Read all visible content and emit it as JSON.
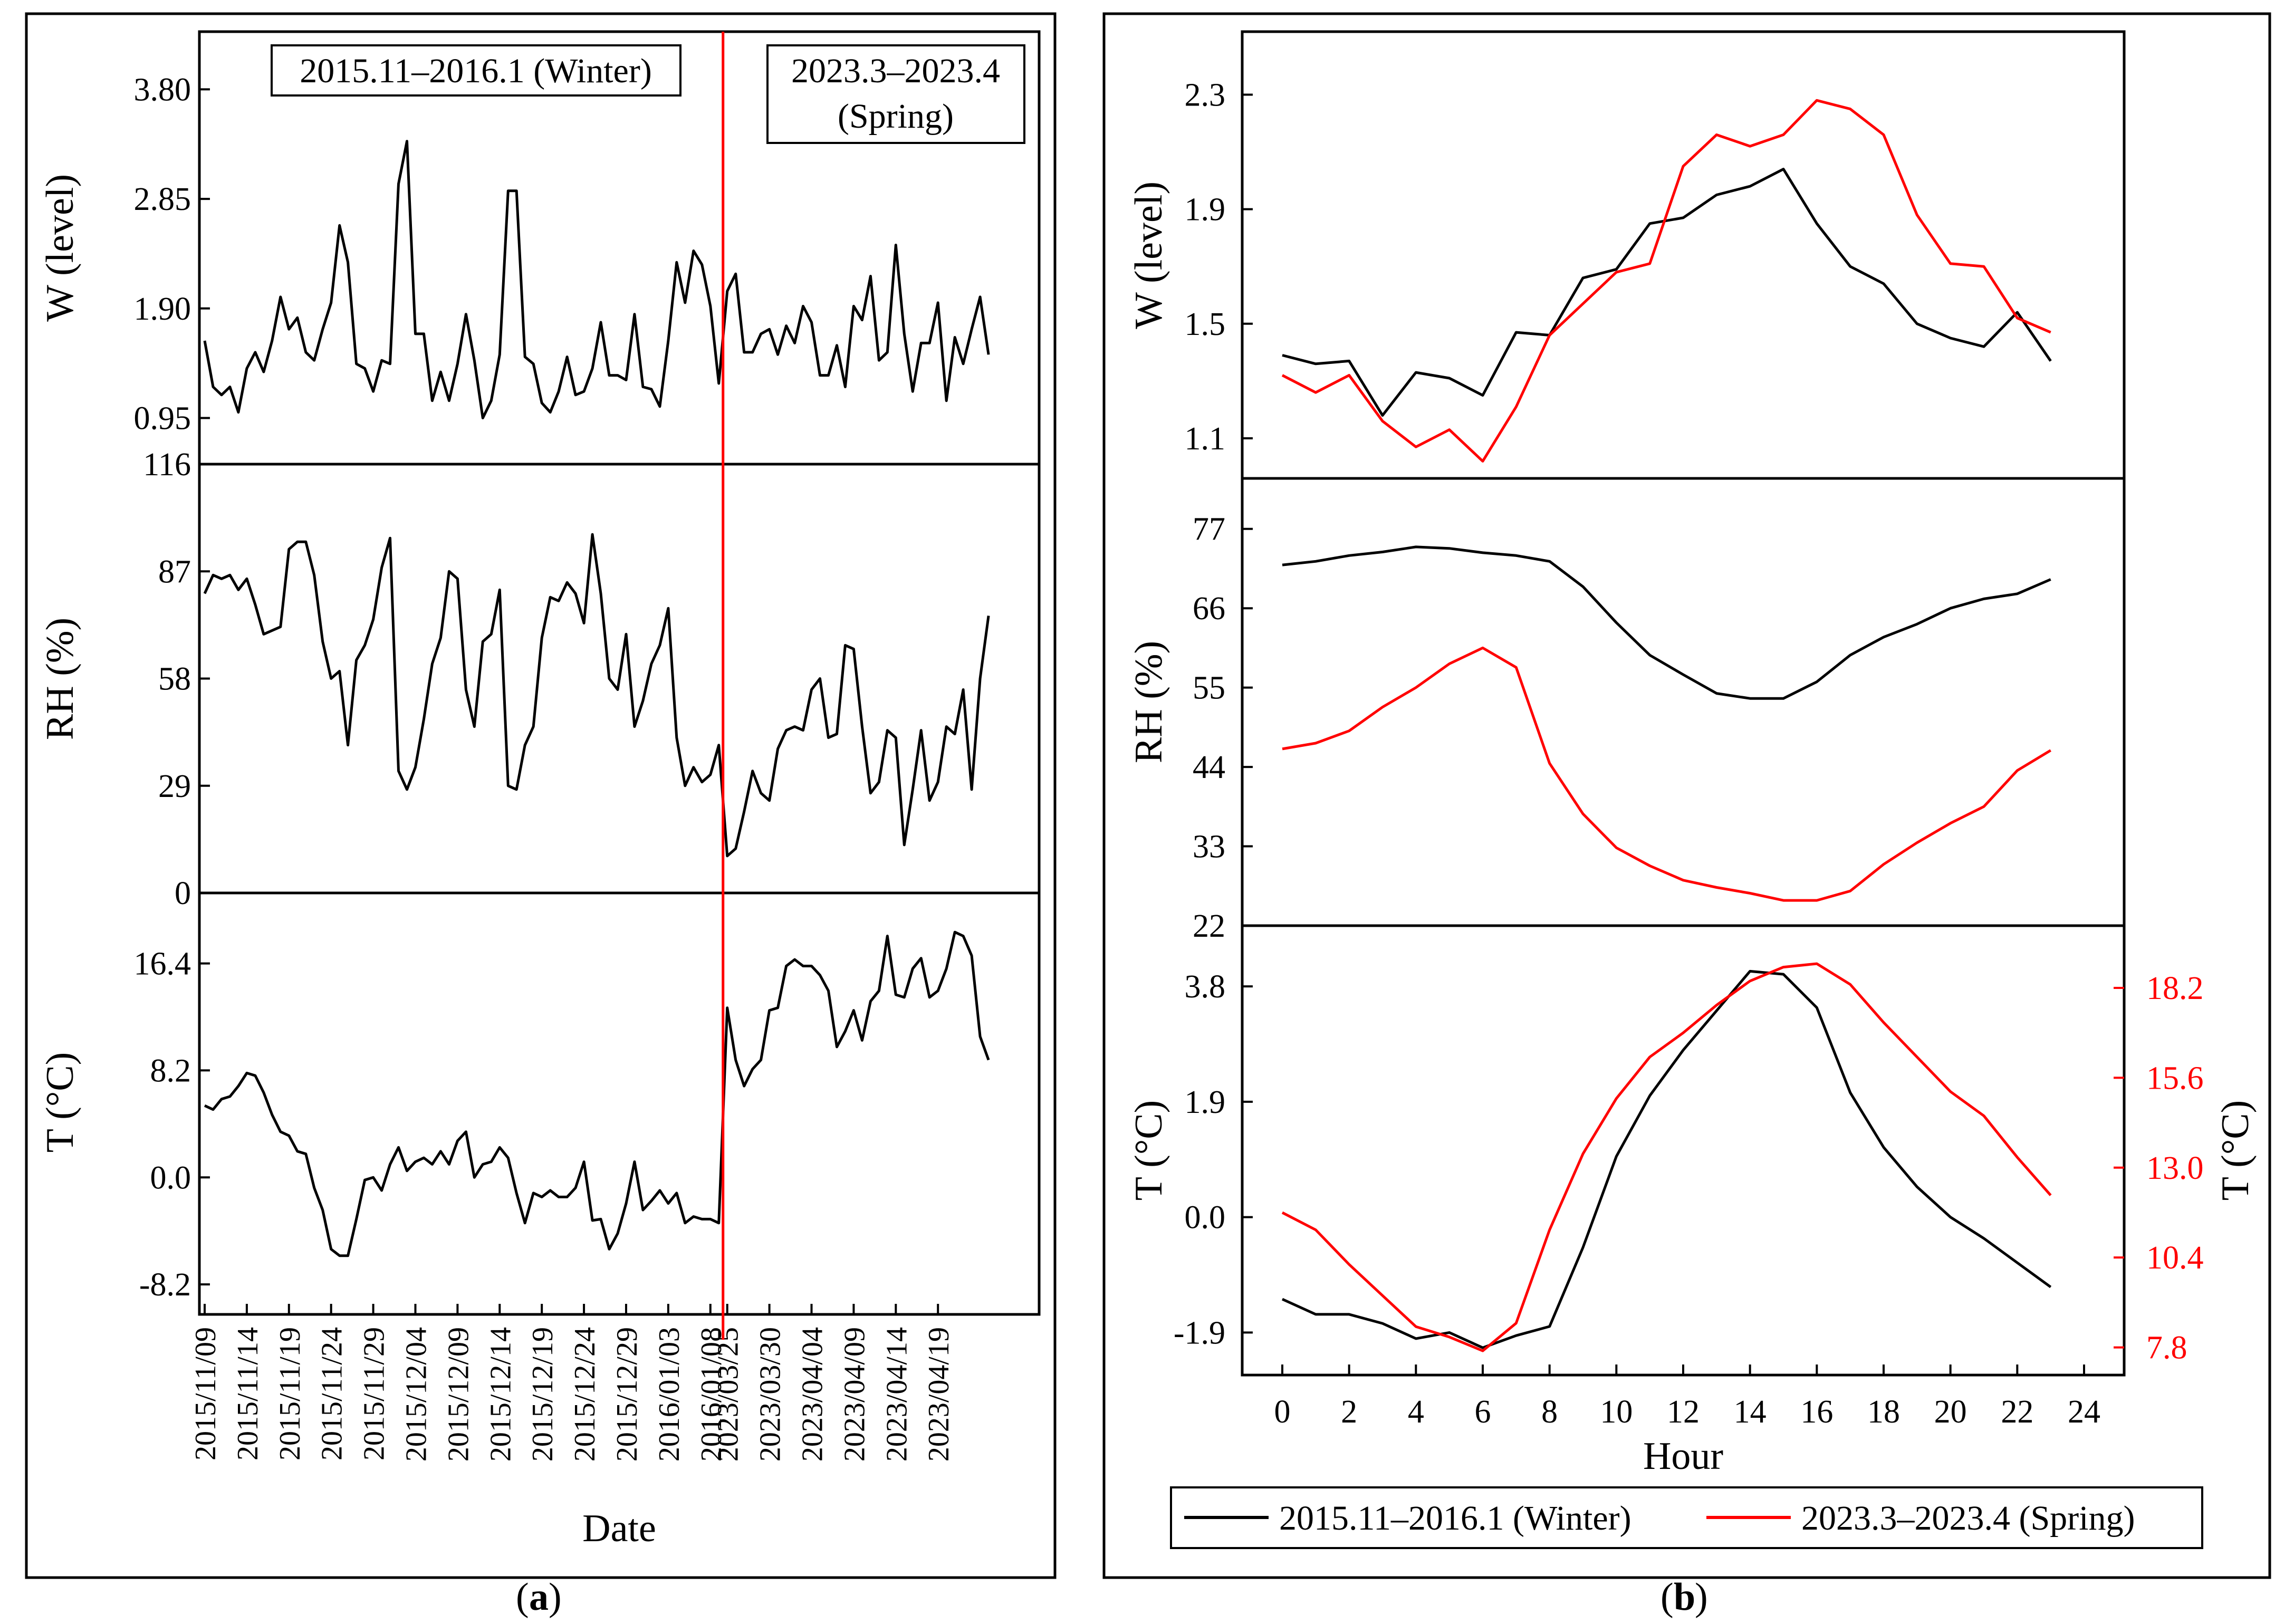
{
  "captions": {
    "a": "a",
    "b": "b"
  },
  "colors": {
    "winter": "#000000",
    "spring": "#ff0000"
  },
  "legend": {
    "winter": "2015.11–2016.1 (Winter)",
    "spring": "2023.3–2023.4 (Spring)"
  },
  "panel_a": {
    "box_winter": "2015.11–2016.1 (Winter)",
    "box_spring_line1": "2023.3–2023.4",
    "box_spring_line2": "(Spring)",
    "xlabel": "Date",
    "date_ticks": [
      "2015/11/09",
      "2015/11/14",
      "2015/11/19",
      "2015/11/24",
      "2015/11/29",
      "2015/12/04",
      "2015/12/09",
      "2015/12/14",
      "2015/12/19",
      "2015/12/24",
      "2015/12/29",
      "2016/01/03",
      "2016/01/08",
      "2023/03/25",
      "2023/03/30",
      "2023/04/04",
      "2023/04/09",
      "2023/04/14",
      "2023/04/19"
    ]
  },
  "chart_data": [
    {
      "id": "a-W",
      "type": "line",
      "title": "",
      "xlabel": "Date",
      "ylabel": "W (level)",
      "ylim": [
        0.55,
        4.3
      ],
      "yticks": [
        "0.95",
        "1.90",
        "2.85",
        "3.80"
      ],
      "x_index_range": [
        0,
        98
      ],
      "divider_after_index": 62,
      "series": [
        {
          "name": "W",
          "values": [
            1.62,
            1.22,
            1.15,
            1.22,
            1.0,
            1.38,
            1.52,
            1.35,
            1.62,
            2.0,
            1.72,
            1.82,
            1.52,
            1.45,
            1.72,
            1.95,
            2.62,
            2.3,
            1.42,
            1.38,
            1.18,
            1.45,
            1.42,
            2.98,
            3.35,
            1.68,
            1.68,
            1.1,
            1.35,
            1.1,
            1.42,
            1.85,
            1.45,
            0.95,
            1.1,
            1.5,
            2.92,
            2.92,
            1.48,
            1.42,
            1.08,
            1.0,
            1.18,
            1.48,
            1.15,
            1.18,
            1.38,
            1.78,
            1.32,
            1.32,
            1.28,
            1.85,
            1.22,
            1.2,
            1.05,
            1.62,
            2.3,
            1.95,
            2.4,
            2.28,
            1.92,
            1.25,
            2.05,
            2.2,
            1.52,
            1.52,
            1.68,
            1.72,
            1.5,
            1.75,
            1.6,
            1.92,
            1.78,
            1.32,
            1.32,
            1.58,
            1.22,
            1.92,
            1.8,
            2.18,
            1.45,
            1.52,
            2.45,
            1.68,
            1.18,
            1.6,
            1.6,
            1.95,
            1.1,
            1.65,
            1.42,
            1.72,
            2.0,
            1.5
          ]
        }
      ]
    },
    {
      "id": "a-RH",
      "type": "line",
      "title": "",
      "xlabel": "Date",
      "ylabel": "RH (%)",
      "ylim": [
        0,
        116
      ],
      "yticks": [
        "0",
        "29",
        "58",
        "87",
        "116"
      ],
      "x_index_range": [
        0,
        98
      ],
      "divider_after_index": 62,
      "series": [
        {
          "name": "RH",
          "values": [
            81,
            86,
            85,
            86,
            82,
            85,
            78,
            70,
            71,
            72,
            93,
            95,
            95,
            86,
            68,
            58,
            60,
            40,
            63,
            67,
            74,
            88,
            96,
            33,
            28,
            34,
            47,
            62,
            69,
            87,
            85,
            55,
            45,
            68,
            70,
            82,
            29,
            28,
            40,
            45,
            69,
            80,
            79,
            84,
            81,
            73,
            97,
            81,
            58,
            55,
            70,
            45,
            52,
            62,
            67,
            77,
            42,
            29,
            34,
            30,
            32,
            40,
            10,
            12,
            22,
            33,
            27,
            25,
            39,
            44,
            45,
            44,
            55,
            58,
            42,
            43,
            67,
            66,
            45,
            27,
            30,
            44,
            42,
            13,
            28,
            44,
            25,
            30,
            45,
            43,
            55,
            28,
            58,
            75
          ]
        }
      ]
    },
    {
      "id": "a-T",
      "type": "line",
      "title": "",
      "xlabel": "Date",
      "ylabel": "T (°C)",
      "ylim": [
        -10.5,
        21.8
      ],
      "yticks": [
        "-8.2",
        "0.0",
        "8.2",
        "16.4"
      ],
      "x_index_range": [
        0,
        98
      ],
      "divider_after_index": 62,
      "series": [
        {
          "name": "T",
          "values": [
            5.5,
            5.2,
            6.0,
            6.2,
            7.0,
            8.0,
            7.8,
            6.5,
            4.8,
            3.5,
            3.2,
            2.0,
            1.8,
            -0.8,
            -2.5,
            -5.5,
            -6.0,
            -6.0,
            -3.2,
            -0.2,
            0.0,
            -1.0,
            1.0,
            2.3,
            0.5,
            1.2,
            1.5,
            1.0,
            2.0,
            1.0,
            2.8,
            3.5,
            0.0,
            1.0,
            1.2,
            2.3,
            1.5,
            -1.2,
            -3.5,
            -1.2,
            -1.5,
            -1.0,
            -1.5,
            -1.5,
            -0.8,
            1.2,
            -3.3,
            -3.2,
            -5.5,
            -4.3,
            -2.0,
            1.2,
            -2.5,
            -1.8,
            -1.0,
            -2.0,
            -1.2,
            -3.5,
            -3.0,
            -3.2,
            -3.2,
            -3.5,
            13.0,
            9.0,
            7.0,
            8.3,
            9.0,
            12.8,
            13.0,
            16.2,
            16.7,
            16.2,
            16.2,
            15.5,
            14.3,
            10.0,
            11.2,
            12.8,
            10.5,
            13.5,
            14.3,
            18.5,
            14.0,
            13.8,
            16.0,
            16.8,
            13.8,
            14.3,
            16.0,
            18.8,
            18.5,
            17.0,
            10.8,
            9.0
          ]
        }
      ]
    },
    {
      "id": "b-W",
      "type": "line",
      "title": "",
      "xlabel": "Hour",
      "ylabel": "W (level)",
      "xlim": [
        -1.2,
        25.2
      ],
      "ylim": [
        0.96,
        2.52
      ],
      "yticks": [
        "1.1",
        "1.5",
        "1.9",
        "2.3"
      ],
      "series": [
        {
          "name": "2015.11–2016.1 (Winter)",
          "color": "#000000",
          "x": [
            0,
            1,
            2,
            3,
            4,
            5,
            6,
            7,
            8,
            9,
            10,
            11,
            12,
            13,
            14,
            15,
            16,
            17,
            18,
            19,
            20,
            21,
            22,
            23
          ],
          "values": [
            1.39,
            1.36,
            1.37,
            1.18,
            1.33,
            1.31,
            1.25,
            1.47,
            1.46,
            1.66,
            1.69,
            1.85,
            1.87,
            1.95,
            1.98,
            2.04,
            1.85,
            1.7,
            1.64,
            1.5,
            1.45,
            1.42,
            1.54,
            1.37
          ]
        },
        {
          "name": "2023.3–2023.4 (Spring)",
          "color": "#ff0000",
          "x": [
            0,
            1,
            2,
            3,
            4,
            5,
            6,
            7,
            8,
            9,
            10,
            11,
            12,
            13,
            14,
            15,
            16,
            17,
            18,
            19,
            20,
            21,
            22,
            23
          ],
          "values": [
            1.32,
            1.26,
            1.32,
            1.16,
            1.07,
            1.13,
            1.02,
            1.21,
            1.46,
            1.57,
            1.68,
            1.71,
            2.05,
            2.16,
            2.12,
            2.16,
            2.28,
            2.25,
            2.16,
            1.88,
            1.71,
            1.7,
            1.52,
            1.47
          ]
        }
      ]
    },
    {
      "id": "b-RH",
      "type": "line",
      "title": "",
      "xlabel": "Hour",
      "ylabel": "RH (%)",
      "xlim": [
        -1.2,
        25.2
      ],
      "ylim": [
        22,
        84
      ],
      "yticks": [
        "22",
        "33",
        "44",
        "55",
        "66",
        "77"
      ],
      "series": [
        {
          "name": "2015.11–2016.1 (Winter)",
          "color": "#000000",
          "x": [
            0,
            1,
            2,
            3,
            4,
            5,
            6,
            7,
            8,
            9,
            10,
            11,
            12,
            13,
            14,
            15,
            16,
            17,
            18,
            19,
            20,
            21,
            22,
            23
          ],
          "values": [
            72,
            72.5,
            73.3,
            73.8,
            74.5,
            74.3,
            73.7,
            73.3,
            72.5,
            69,
            64,
            59.5,
            56.8,
            54.2,
            53.5,
            53.5,
            55.8,
            59.5,
            62,
            63.8,
            66,
            67.3,
            68,
            70
          ]
        },
        {
          "name": "2023.3–2023.4 (Spring)",
          "color": "#ff0000",
          "x": [
            0,
            1,
            2,
            3,
            4,
            5,
            6,
            7,
            8,
            9,
            10,
            11,
            12,
            13,
            14,
            15,
            16,
            17,
            18,
            19,
            20,
            21,
            22,
            23
          ],
          "values": [
            46.5,
            47.3,
            49,
            52.3,
            55,
            58.3,
            60.5,
            57.8,
            44.5,
            37.5,
            32.8,
            30.3,
            28.3,
            27.3,
            26.5,
            25.5,
            25.5,
            26.8,
            30.5,
            33.5,
            36.2,
            38.5,
            43.5,
            46.3
          ]
        }
      ]
    },
    {
      "id": "b-T",
      "type": "line",
      "title": "",
      "xlabel": "Hour",
      "ylabel": "T (°C)",
      "ylabel_right": "T (°C)",
      "xlim": [
        -1.2,
        25.2
      ],
      "ylim": [
        -2.6,
        4.8
      ],
      "ylim_right": [
        7.0,
        20.0
      ],
      "yticks": [
        "-1.9",
        "0.0",
        "1.9",
        "3.8"
      ],
      "yticks_right": [
        "7.8",
        "10.4",
        "13.0",
        "15.6",
        "18.2"
      ],
      "xticks": [
        "0",
        "2",
        "4",
        "6",
        "8",
        "10",
        "12",
        "14",
        "16",
        "18",
        "20",
        "22",
        "24"
      ],
      "series": [
        {
          "name": "2015.11–2016.1 (Winter)",
          "color": "#000000",
          "axis": "left",
          "x": [
            0,
            1,
            2,
            3,
            4,
            5,
            6,
            7,
            8,
            9,
            10,
            11,
            12,
            13,
            14,
            15,
            16,
            17,
            18,
            19,
            20,
            21,
            22,
            23
          ],
          "values": [
            -1.35,
            -1.6,
            -1.6,
            -1.75,
            -2.0,
            -1.9,
            -2.15,
            -1.95,
            -1.8,
            -0.5,
            1.0,
            2.0,
            2.75,
            3.4,
            4.05,
            4.0,
            3.45,
            2.05,
            1.15,
            0.5,
            0.0,
            -0.35,
            -0.75,
            -1.15
          ]
        },
        {
          "name": "2023.3–2023.4 (Spring)",
          "color": "#ff0000",
          "axis": "right",
          "x": [
            0,
            1,
            2,
            3,
            4,
            5,
            6,
            7,
            8,
            9,
            10,
            11,
            12,
            13,
            14,
            15,
            16,
            17,
            18,
            19,
            20,
            21,
            22,
            23
          ],
          "values": [
            11.7,
            11.2,
            10.2,
            9.3,
            8.4,
            8.1,
            7.7,
            8.5,
            11.2,
            13.4,
            15.0,
            16.2,
            16.9,
            17.7,
            18.4,
            18.8,
            18.9,
            18.3,
            17.2,
            16.2,
            15.2,
            14.5,
            13.3,
            12.2
          ]
        }
      ]
    }
  ]
}
